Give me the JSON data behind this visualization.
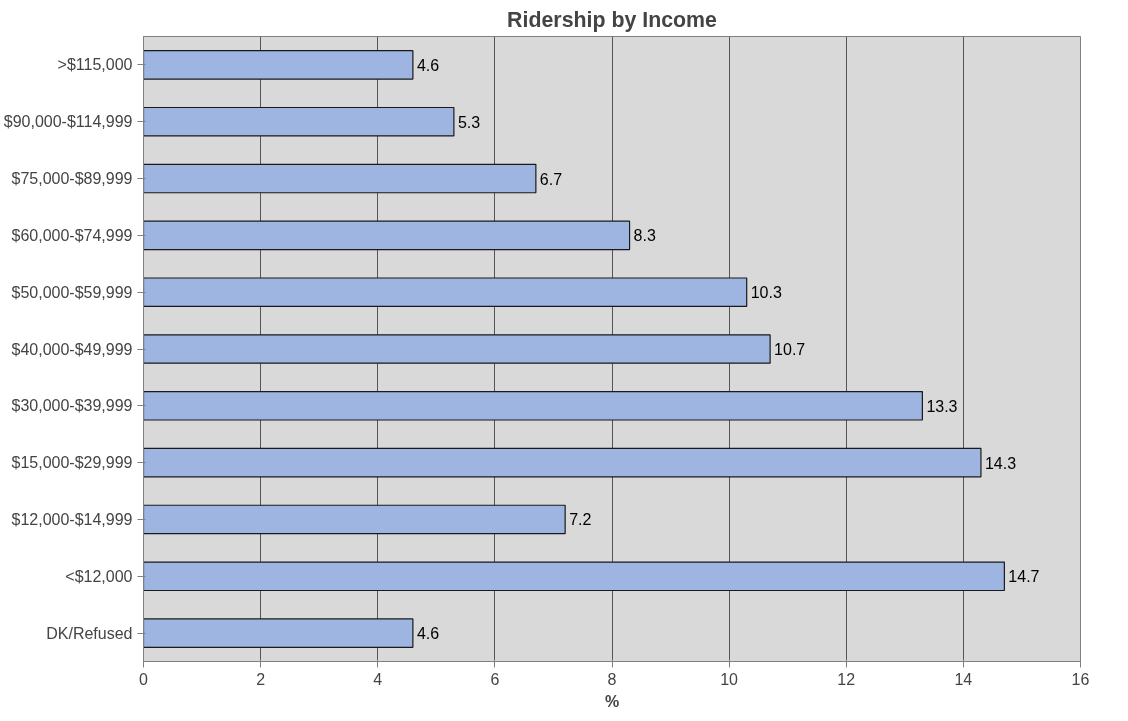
{
  "chart_data": {
    "type": "bar",
    "orientation": "horizontal",
    "title": "Ridership by Income",
    "xlabel": "%",
    "categories": [
      ">$115,000",
      "$90,000-$114,999",
      "$75,000-$89,999",
      "$60,000-$74,999",
      "$50,000-$59,999",
      "$40,000-$49,999",
      "$30,000-$39,999",
      "$15,000-$29,999",
      "$12,000-$14,999",
      "<$12,000",
      "DK/Refused"
    ],
    "values": [
      4.6,
      5.3,
      6.7,
      8.3,
      10.3,
      10.7,
      13.3,
      14.3,
      7.2,
      14.7,
      4.6
    ],
    "color": "#9db5e0",
    "xlim": [
      0,
      16
    ],
    "xticks": [
      0,
      2,
      4,
      6,
      8,
      10,
      12,
      14,
      16
    ],
    "grid": "x",
    "data_labels": true
  }
}
